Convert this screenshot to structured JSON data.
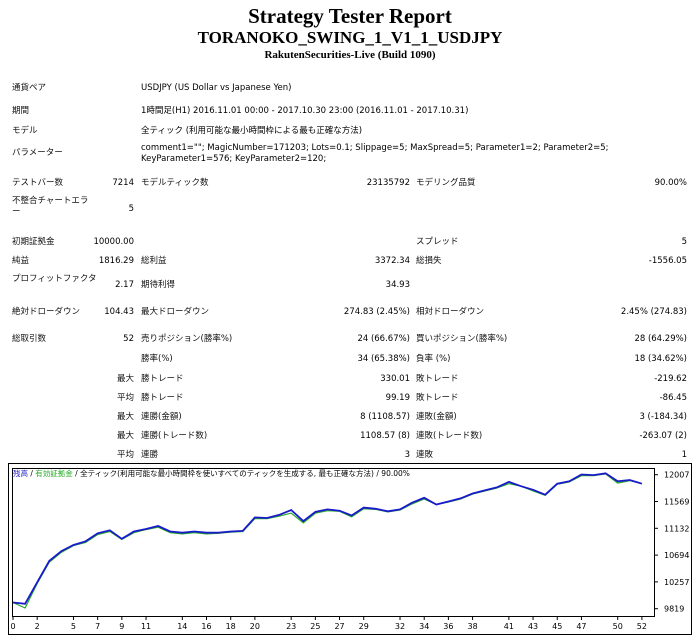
{
  "header": {
    "title": "Strategy Tester Report",
    "subtitle": "TORANOKO_SWING_1_V1_1_USDJPY",
    "source": "RakutenSecurities-Live (Build 1090)"
  },
  "info": {
    "symbol_label": "通貨ペア",
    "symbol_value": "USDJPY (US Dollar vs Japanese Yen)",
    "period_label": "期間",
    "period_value": "1時間足(H1) 2016.11.01 00:00 - 2017.10.30 23:00 (2016.11.01 - 2017.10.31)",
    "model_label": "モデル",
    "model_value": "全ティック (利用可能な最小時間枠による最も正確な方法)",
    "params_label": "パラメーター",
    "params_value": "comment1=\"\"; MagicNumber=171203; Lots=0.1; Slippage=5; MaxSpread=5; Parameter1=2; Parameter2=5; KeyParameter1=576; KeyParameter2=120;"
  },
  "stats": {
    "bars_label": "テストバー数",
    "bars_value": "7214",
    "ticks_label": "モデルティック数",
    "ticks_value": "23135792",
    "quality_label": "モデリング品質",
    "quality_value": "90.00%",
    "mismatch_label": "不整合チャートエラー",
    "mismatch_value": "5",
    "deposit_label": "初期証拠金",
    "deposit_value": "10000.00",
    "spread_label": "スプレッド",
    "spread_value": "5",
    "netprofit_label": "純益",
    "netprofit_value": "1816.29",
    "grossprofit_label": "総利益",
    "grossprofit_value": "3372.34",
    "grossloss_label": "総損失",
    "grossloss_value": "-1556.05",
    "pf_label": "プロフィットファクタ",
    "pf_value": "2.17",
    "expected_label": "期待利得",
    "expected_value": "34.93",
    "absdd_label": "絶対ドローダウン",
    "absdd_value": "104.43",
    "maxdd_label": "最大ドローダウン",
    "maxdd_value": "274.83 (2.45%)",
    "reldd_label": "相対ドローダウン",
    "reldd_value": "2.45% (274.83)",
    "trades_label": "総取引数",
    "trades_value": "52",
    "short_label": "売りポジション(勝率%)",
    "short_value": "24 (66.67%)",
    "long_label": "買いポジション(勝率%)",
    "long_value": "28 (64.29%)",
    "winrate_label": "勝率(%)",
    "winrate_value": "34 (65.38%)",
    "lossrate_label": "負率 (%)",
    "lossrate_value": "18 (34.62%)",
    "max_label": "最大",
    "avg_label": "平均",
    "maxwin_label": "勝トレード",
    "maxwin_value": "330.01",
    "maxloss_label": "敗トレード",
    "maxloss_value": "-219.62",
    "avgwin_label": "勝トレード",
    "avgwin_value": "99.19",
    "avgloss_label": "敗トレード",
    "avgloss_value": "-86.45",
    "consecwin_amt_label": "連勝(金額)",
    "consecwin_amt_value": "8 (1108.57)",
    "consecloss_amt_label": "連敗(金額)",
    "consecloss_amt_value": "3 (-184.34)",
    "consecwin_cnt_label": "連勝(トレード数)",
    "consecwin_cnt_value": "1108.57 (8)",
    "consecloss_cnt_label": "連敗(トレード数)",
    "consecloss_cnt_value": "-263.07 (2)",
    "avgconswin_label": "連勝",
    "avgconswin_value": "3",
    "avgconsloss_label": "連敗",
    "avgconsloss_value": "1"
  },
  "chart_legend": {
    "balance": "残高",
    "sep1": " / ",
    "equity": "有効証拠金",
    "sep2": " / ",
    "model": "全ティック(利用可能な最小時間枠を使いすべてのティックを生成する, 最も正確な方法)",
    "sep3": " / ",
    "quality": "90.00%"
  },
  "colors": {
    "balance": "#1a1acc",
    "equity": "#22aa22",
    "axis": "#000000"
  },
  "chart_data": {
    "type": "line",
    "xlabel": "",
    "ylabel": "",
    "x_ticks": [
      0,
      2,
      5,
      7,
      9,
      11,
      14,
      16,
      18,
      20,
      23,
      25,
      27,
      29,
      32,
      34,
      36,
      38,
      41,
      43,
      45,
      47,
      50,
      52
    ],
    "y_ticks": [
      9819,
      10257,
      10694,
      11132,
      11569,
      12007
    ],
    "xlim": [
      0,
      53
    ],
    "ylim": [
      9700,
      12100
    ],
    "series": [
      {
        "name": "残高",
        "color": "#1a1acc",
        "x": [
          0,
          1,
          2,
          3,
          4,
          5,
          6,
          7,
          8,
          9,
          10,
          11,
          12,
          13,
          14,
          15,
          16,
          17,
          18,
          19,
          20,
          21,
          22,
          23,
          24,
          25,
          26,
          27,
          28,
          29,
          30,
          31,
          32,
          33,
          34,
          35,
          36,
          37,
          38,
          39,
          40,
          41,
          42,
          43,
          44,
          45,
          46,
          47,
          48,
          49,
          50,
          51,
          52
        ],
        "values": [
          9920,
          9900,
          10250,
          10600,
          10760,
          10860,
          10920,
          11050,
          11100,
          10960,
          11080,
          11120,
          11170,
          11080,
          11060,
          11080,
          11060,
          11060,
          11080,
          11090,
          11310,
          11300,
          11350,
          11430,
          11250,
          11400,
          11440,
          11420,
          11340,
          11470,
          11450,
          11410,
          11440,
          11550,
          11630,
          11520,
          11570,
          11620,
          11700,
          11750,
          11800,
          11890,
          11820,
          11760,
          11680,
          11860,
          11900,
          12010,
          12000,
          12030,
          11900,
          11920,
          11860
        ]
      },
      {
        "name": "有効証拠金",
        "color": "#22aa22",
        "x": [
          0,
          1,
          2,
          3,
          4,
          5,
          6,
          7,
          8,
          9,
          10,
          11,
          12,
          13,
          14,
          15,
          16,
          17,
          18,
          19,
          20,
          21,
          22,
          23,
          24,
          25,
          26,
          27,
          28,
          29,
          30,
          31,
          32,
          33,
          34,
          35,
          36,
          37,
          38,
          39,
          40,
          41,
          42,
          43,
          44,
          45,
          46,
          47,
          48,
          49,
          50,
          51,
          52
        ],
        "values": [
          9920,
          9830,
          10230,
          10580,
          10740,
          10850,
          10900,
          11030,
          11080,
          10950,
          11060,
          11110,
          11150,
          11060,
          11040,
          11060,
          11040,
          11050,
          11070,
          11080,
          11290,
          11290,
          11330,
          11380,
          11220,
          11380,
          11420,
          11410,
          11320,
          11450,
          11440,
          11400,
          11430,
          11530,
          11610,
          11520,
          11560,
          11610,
          11690,
          11740,
          11790,
          11860,
          11820,
          11740,
          11670,
          11850,
          11890,
          11990,
          11990,
          12020,
          11870,
          11910,
          11860
        ]
      }
    ]
  }
}
